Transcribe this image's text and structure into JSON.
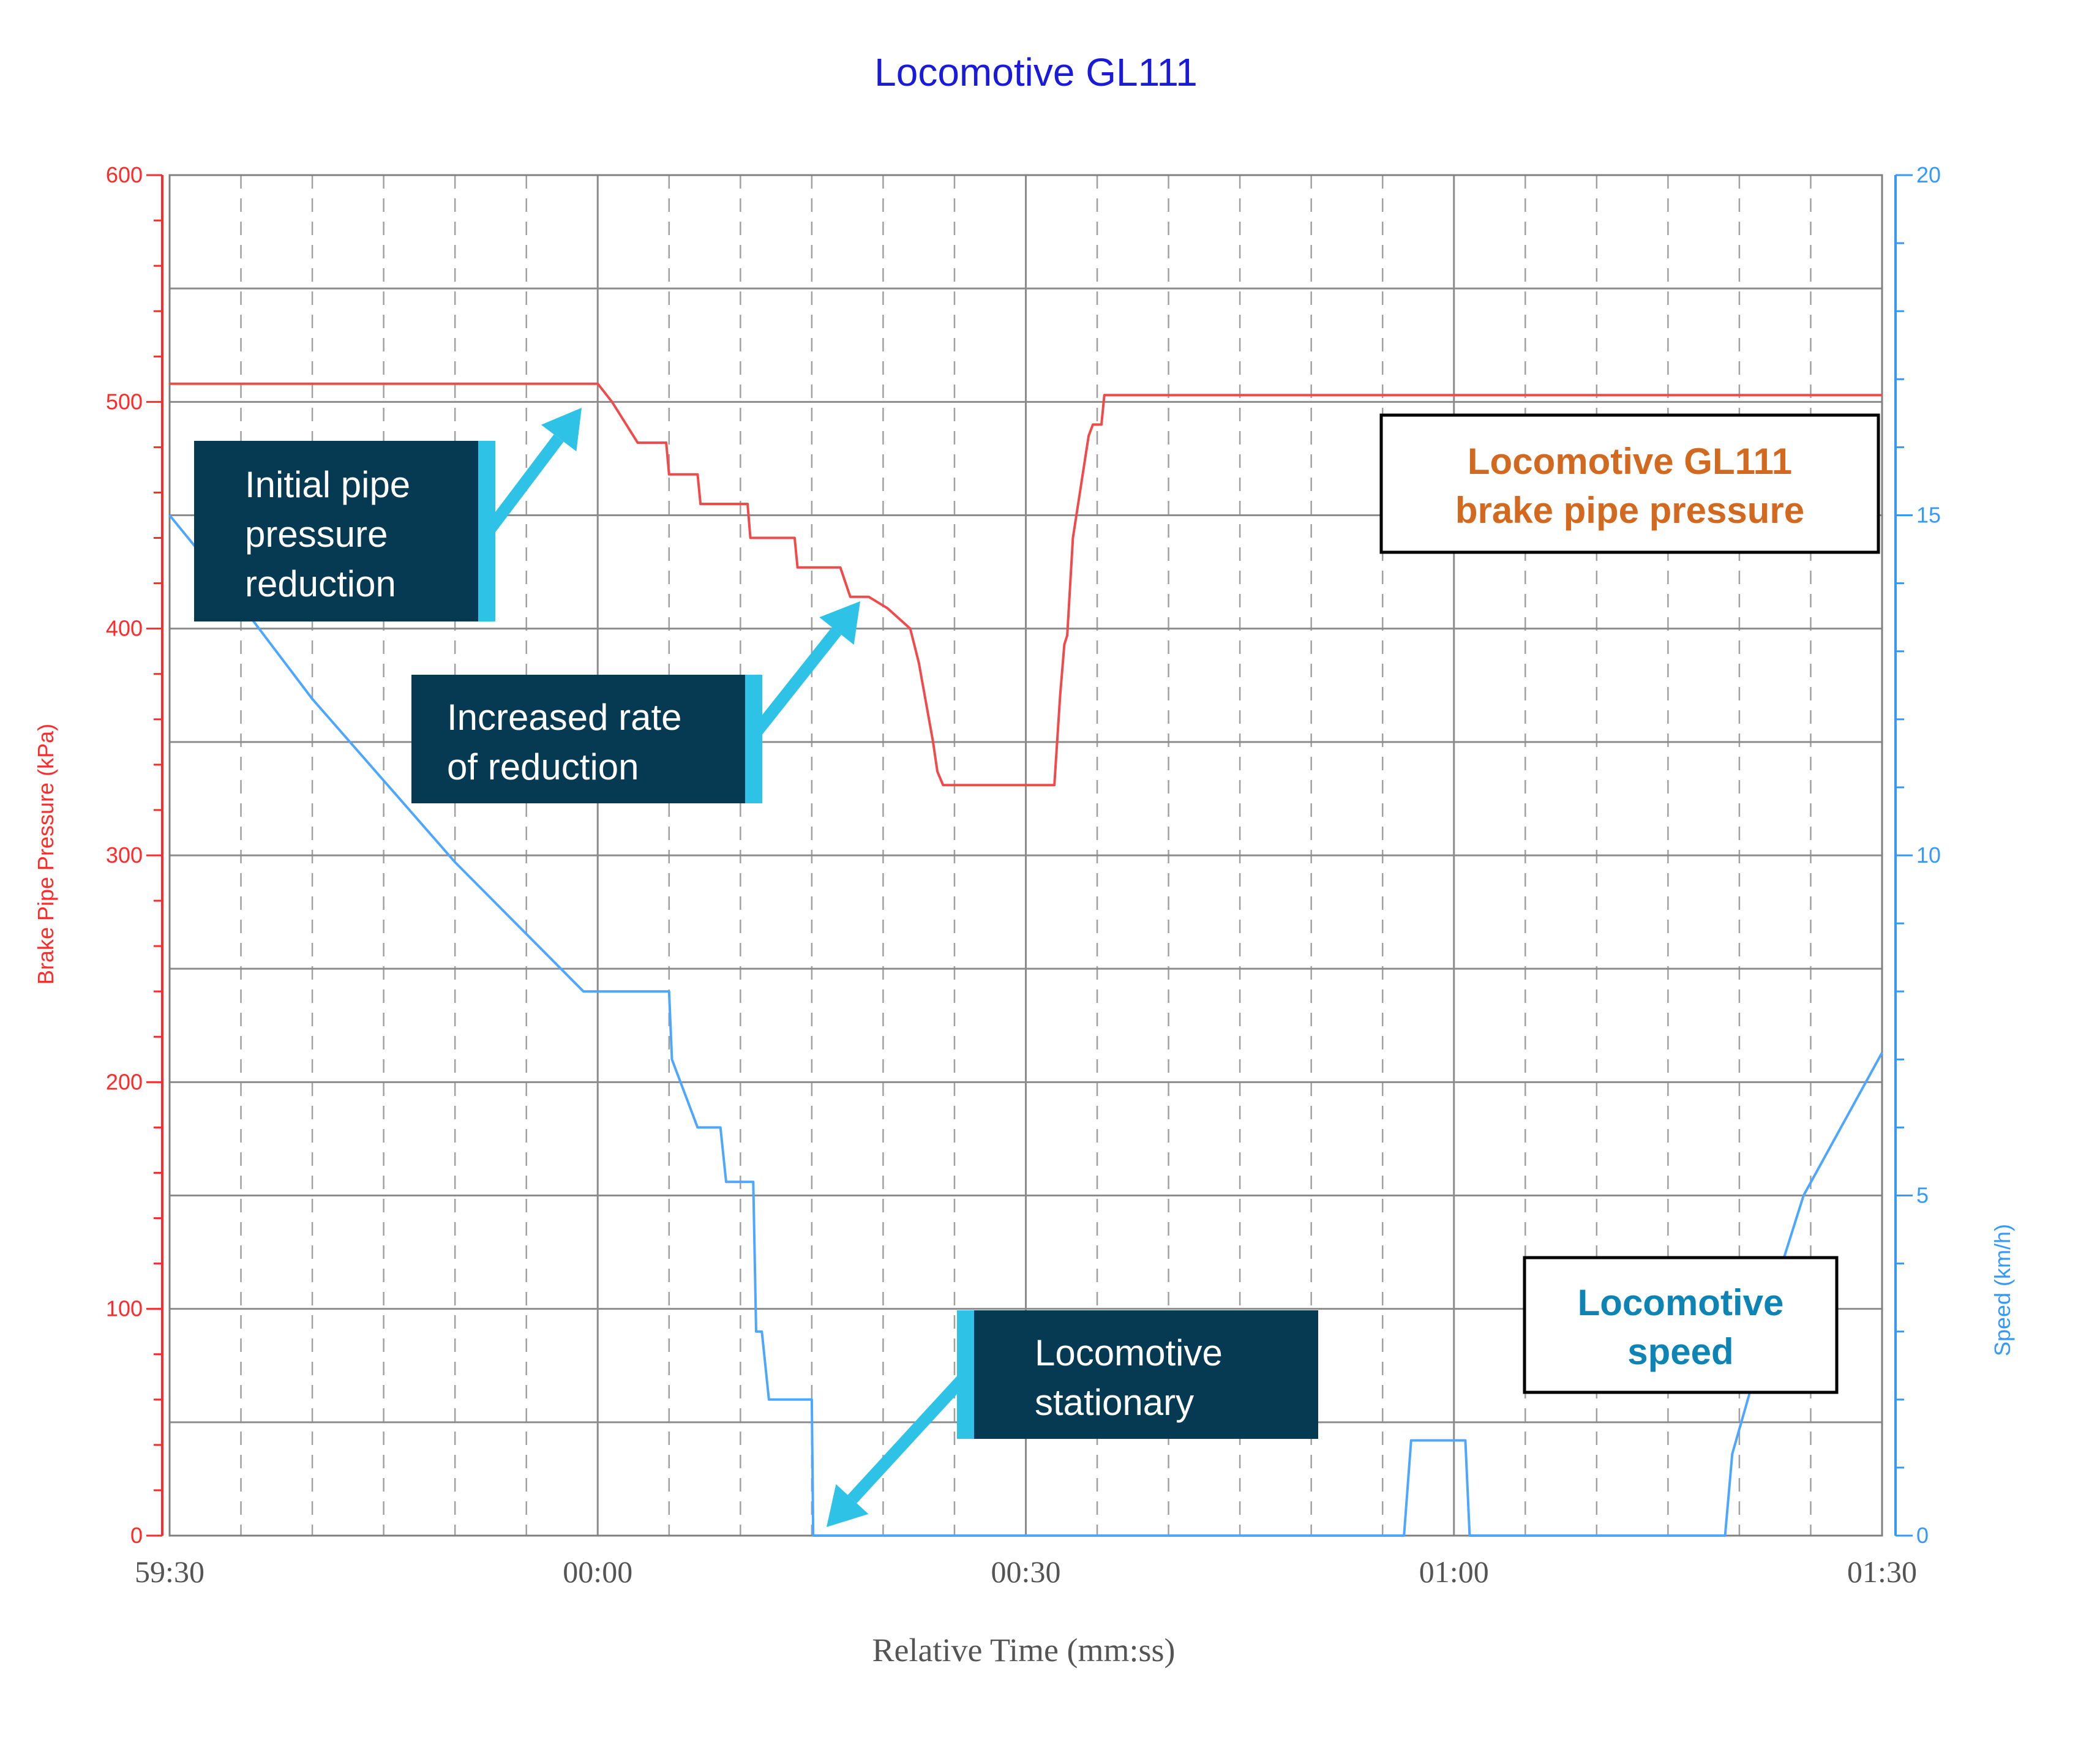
{
  "chart_data": {
    "type": "line",
    "title": "Locomotive GL111",
    "xlabel": "Relative Time (mm:ss)",
    "x_range_seconds": [
      -30,
      90
    ],
    "x_ticks": [
      {
        "t": -30,
        "label": "59:30"
      },
      {
        "t": 0,
        "label": "00:00"
      },
      {
        "t": 30,
        "label": "00:30"
      },
      {
        "t": 60,
        "label": "01:00"
      },
      {
        "t": 90,
        "label": "01:30"
      }
    ],
    "y_left": {
      "label": "Brake Pipe Pressure (kPa)",
      "range": [
        0,
        600
      ],
      "ticks": [
        {
          "v": 0,
          "label": "0"
        },
        {
          "v": 100,
          "label": "100"
        },
        {
          "v": 200,
          "label": "200"
        },
        {
          "v": 300,
          "label": "300"
        },
        {
          "v": 400,
          "label": "400"
        },
        {
          "v": 500,
          "label": "500"
        },
        {
          "v": 600,
          "label": "600"
        }
      ],
      "color": "#ff2a2a"
    },
    "y_right": {
      "label": "Speed (km/h)",
      "range": [
        0,
        20
      ],
      "ticks": [
        {
          "v": 0,
          "label": "0"
        },
        {
          "v": 5,
          "label": "5"
        },
        {
          "v": 10,
          "label": "10"
        },
        {
          "v": 15,
          "label": "15"
        },
        {
          "v": 20,
          "label": "20"
        }
      ],
      "color": "#3399ff"
    },
    "grid": true,
    "series": [
      {
        "name": "Locomotive GL111 brake pipe pressure",
        "axis": "left",
        "color": "#f04a4a",
        "points": [
          [
            -30,
            508
          ],
          [
            0,
            508
          ],
          [
            1,
            500
          ],
          [
            2.8,
            482
          ],
          [
            4.8,
            482
          ],
          [
            5,
            468
          ],
          [
            7,
            468
          ],
          [
            7.2,
            455
          ],
          [
            10.5,
            455
          ],
          [
            10.7,
            440
          ],
          [
            13.8,
            440
          ],
          [
            14,
            427
          ],
          [
            17,
            427
          ],
          [
            17.7,
            414
          ],
          [
            19,
            414
          ],
          [
            20.3,
            409
          ],
          [
            21.9,
            400
          ],
          [
            22.5,
            385
          ],
          [
            23.5,
            350
          ],
          [
            23.8,
            337
          ],
          [
            24.2,
            331
          ],
          [
            32,
            331
          ],
          [
            32.4,
            370
          ],
          [
            32.7,
            393
          ],
          [
            32.9,
            397
          ],
          [
            33.3,
            440
          ],
          [
            34.4,
            485
          ],
          [
            34.7,
            490
          ],
          [
            35.3,
            490
          ],
          [
            35.5,
            503
          ],
          [
            90,
            503
          ]
        ]
      },
      {
        "name": "Locomotive speed",
        "axis": "right",
        "color": "#4da6ff",
        "points": [
          [
            -30,
            15
          ],
          [
            -26.5,
            14.1
          ],
          [
            -20,
            12.3
          ],
          [
            -10,
            9.9
          ],
          [
            -1,
            8
          ],
          [
            5,
            8
          ],
          [
            5.2,
            7
          ],
          [
            7,
            6
          ],
          [
            8.6,
            6
          ],
          [
            9,
            5.2
          ],
          [
            10.9,
            5.2
          ],
          [
            11.1,
            3
          ],
          [
            11.5,
            3
          ],
          [
            12,
            2
          ],
          [
            15,
            2
          ],
          [
            15.1,
            0
          ],
          [
            56.5,
            0
          ],
          [
            57,
            1.4
          ],
          [
            60.8,
            1.4
          ],
          [
            61.1,
            0
          ],
          [
            79,
            0
          ],
          [
            79.5,
            1.2
          ],
          [
            81,
            2.3
          ],
          [
            82.5,
            2.3
          ],
          [
            83,
            4
          ],
          [
            84.5,
            5
          ],
          [
            90,
            7.1
          ]
        ]
      }
    ],
    "annotations": [
      {
        "lines": [
          "Initial pipe",
          "pressure",
          "reduction"
        ]
      },
      {
        "lines": [
          "Increased rate",
          "of reduction"
        ]
      },
      {
        "lines": [
          "Locomotive",
          "stationary"
        ]
      }
    ],
    "legend_boxes": [
      {
        "lines": [
          "Locomotive GL111",
          "brake pipe pressure"
        ],
        "color": "#d2691e",
        "placement": "top-right"
      },
      {
        "lines": [
          "Locomotive",
          "speed"
        ],
        "color": "#0e84b4",
        "placement": "bottom-right"
      }
    ],
    "colors": {
      "title": "#1a1adb",
      "annotation_bg": "#053a52",
      "annotation_accent": "#2ec2e6",
      "grid": "#8c8c8c",
      "axis_text": "#555555"
    }
  }
}
